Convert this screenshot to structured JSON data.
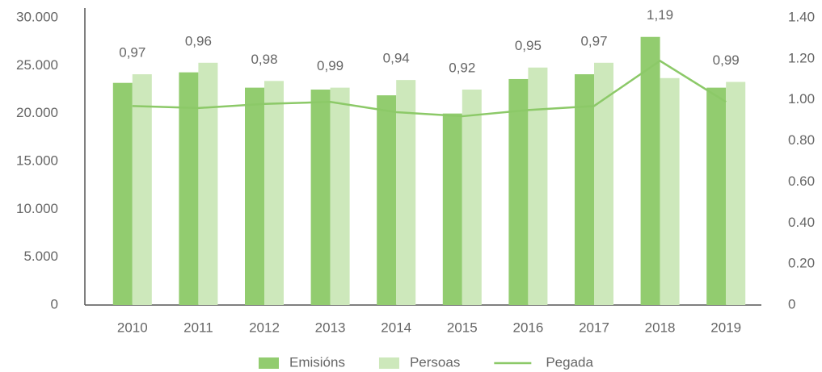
{
  "chart_data": {
    "type": "bar_line",
    "categories": [
      "2010",
      "2011",
      "2012",
      "2013",
      "2014",
      "2015",
      "2016",
      "2017",
      "2018",
      "2019"
    ],
    "series": [
      {
        "name": "Emisións",
        "color": "#92cc6f",
        "values": [
          23200,
          24300,
          22700,
          22500,
          21900,
          20000,
          23600,
          24100,
          28000,
          22700
        ]
      },
      {
        "name": "Persoas",
        "color": "#cde8bb",
        "values": [
          24100,
          25300,
          23400,
          22700,
          23500,
          22500,
          24800,
          25300,
          23700,
          23300
        ]
      },
      {
        "name": "Pegada",
        "color": "#8cc968",
        "axis": "y2",
        "type": "line",
        "values": [
          0.97,
          0.96,
          0.98,
          0.99,
          0.94,
          0.92,
          0.95,
          0.97,
          1.19,
          0.99
        ],
        "value_labels": [
          "0,97",
          "0,96",
          "0,98",
          "0,99",
          "0,94",
          "0,92",
          "0,95",
          "0,97",
          "1,19",
          "0,99"
        ]
      }
    ],
    "ylim": [
      0,
      30000
    ],
    "yticks": [
      0,
      {
        "value": 5000,
        "label": "5.000"
      },
      {
        "value": 10000,
        "label": "10.000"
      },
      {
        "value": 15000,
        "label": "15.000"
      },
      {
        "value": 20000,
        "label": "20.000"
      },
      {
        "value": 25000,
        "label": "25.000"
      },
      {
        "value": 30000,
        "label": "30.000"
      }
    ],
    "y2lim": [
      0,
      1.4
    ],
    "y2ticks": [
      0,
      {
        "value": 0.2,
        "label": "0.20"
      },
      {
        "value": 0.4,
        "label": "0.40"
      },
      {
        "value": 0.6,
        "label": "0.60"
      },
      {
        "value": 0.8,
        "label": "0.80"
      },
      {
        "value": 1.0,
        "label": "1.00"
      },
      {
        "value": 1.2,
        "label": "1.20"
      },
      {
        "value": 1.4,
        "label": "1.40"
      }
    ],
    "grid": false,
    "legend": "bottom"
  }
}
